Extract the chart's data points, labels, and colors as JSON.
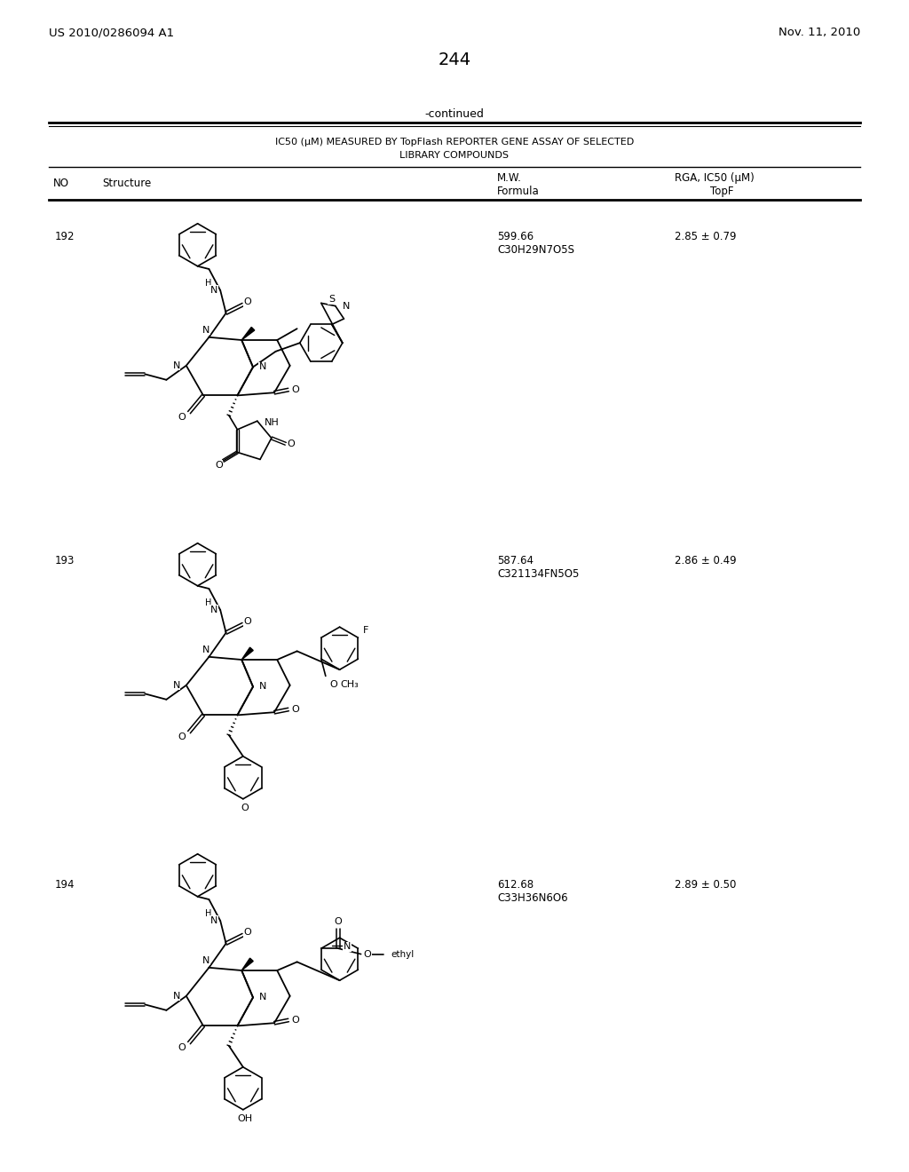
{
  "background_color": "#ffffff",
  "page_number": "244",
  "patent_left": "US 2010/0286094 A1",
  "patent_right": "Nov. 11, 2010",
  "continued_text": "-continued",
  "table_title_line1": "IC50 (μM) MEASURED BY TopFlash REPORTER GENE ASSAY OF SELECTED",
  "table_title_line2": "LIBRARY COMPOUNDS",
  "compounds": [
    {
      "no": "192",
      "mw": "599.66",
      "formula": "C30H29N7O5S",
      "ic50": "2.85 ± 0.79"
    },
    {
      "no": "193",
      "mw": "587.64",
      "formula": "C321134FN5O5",
      "ic50": "2.86 ± 0.49"
    },
    {
      "no": "194",
      "mw": "612.68",
      "formula": "C33H36N6O6",
      "ic50": "2.89 ± 0.50"
    }
  ]
}
